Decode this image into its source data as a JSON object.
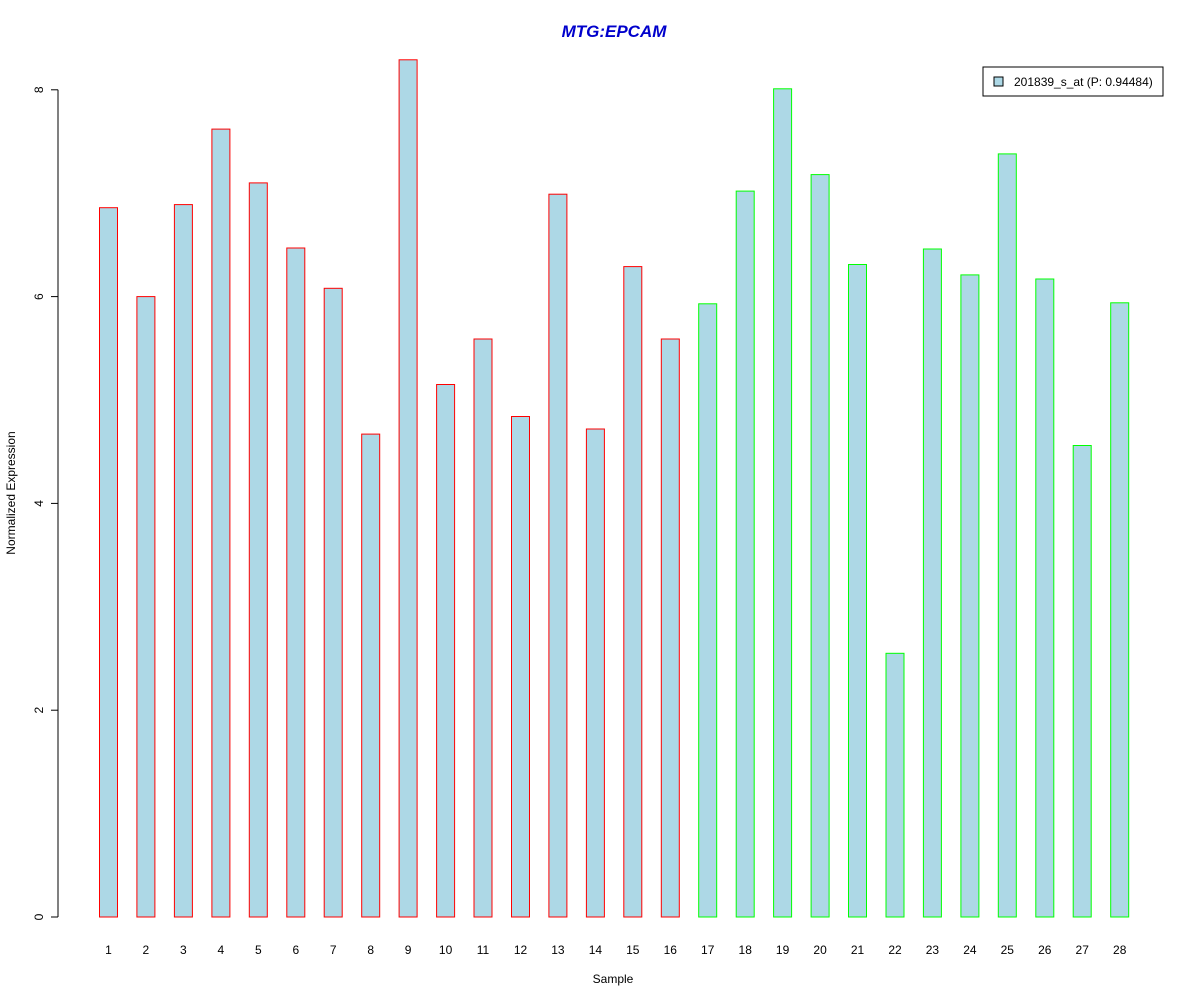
{
  "chart_data": {
    "type": "bar",
    "title": "MTG:EPCAM",
    "xlabel": "Sample",
    "ylabel": "Normalized Expression",
    "ylim": [
      0,
      8
    ],
    "yticks": [
      "0",
      "2",
      "4",
      "6",
      "8"
    ],
    "categories": [
      "1",
      "2",
      "3",
      "4",
      "5",
      "6",
      "7",
      "8",
      "9",
      "10",
      "11",
      "12",
      "13",
      "14",
      "15",
      "16",
      "17",
      "18",
      "19",
      "20",
      "21",
      "22",
      "23",
      "24",
      "25",
      "26",
      "27",
      "28"
    ],
    "series": [
      {
        "name": "201839_s_at (P: 0.94484)",
        "values": [
          6.86,
          6.0,
          6.89,
          7.62,
          7.1,
          6.47,
          6.08,
          4.67,
          8.29,
          5.15,
          5.59,
          4.84,
          6.99,
          4.72,
          6.29,
          5.59,
          5.93,
          7.02,
          8.01,
          7.18,
          6.31,
          2.55,
          6.46,
          6.21,
          7.38,
          6.17,
          4.56,
          5.94
        ]
      }
    ],
    "groups": [
      {
        "from": 1,
        "to": 16,
        "border_color": "#ff0000"
      },
      {
        "from": 17,
        "to": 28,
        "border_color": "#00ff00"
      }
    ],
    "bar_fill": "#add8e6",
    "title_color": "#0000cc",
    "legend_position": "top-right",
    "grid": false
  }
}
